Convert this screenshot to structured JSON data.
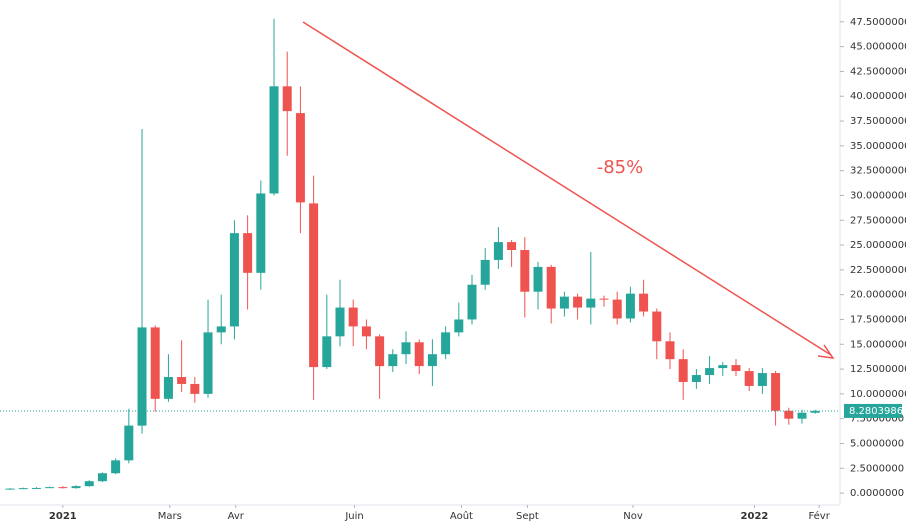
{
  "chart_data": {
    "type": "candlestick",
    "open": [
      0.4,
      0.45,
      0.5,
      0.52,
      0.6,
      0.5,
      0.7,
      1.2,
      2,
      3.3,
      6.8,
      16.7,
      9.5,
      11.7,
      11,
      10,
      16.2,
      16.8,
      26.2,
      22.2,
      30.2,
      41,
      38.3,
      29.2,
      12.7,
      15.8,
      18.7,
      16.8,
      15.8,
      12.8,
      14,
      15.2,
      12.8,
      14,
      16.2,
      17.5,
      21,
      23.5,
      25.3,
      24.5,
      20.3,
      22.8,
      18.6,
      19.8,
      18.7,
      19.6,
      19.5,
      17.6,
      20.1,
      18.3,
      15.3,
      13.5,
      11.2,
      11.9,
      12.6,
      12.9,
      12.3,
      10.8,
      12.1,
      8.3,
      7.5,
      8.1
    ],
    "high": [
      0.5,
      0.55,
      0.6,
      0.65,
      0.7,
      0.8,
      1.3,
      2.1,
      3.5,
      8.5,
      36.7,
      16.9,
      14,
      15.4,
      11.7,
      19.5,
      20,
      27.5,
      28,
      31.5,
      47.8,
      44.5,
      41,
      32,
      20,
      21.5,
      19.5,
      17.5,
      16,
      14.5,
      16.3,
      15.5,
      15.5,
      16.8,
      19.2,
      22,
      24.7,
      26.8,
      25.5,
      25.8,
      23.3,
      23,
      20.3,
      20.1,
      24.3,
      19.9,
      20.3,
      20.8,
      21.5,
      18.6,
      16.2,
      14.5,
      12.5,
      13.8,
      13.2,
      13.5,
      12.6,
      12.6,
      12.3,
      8.6,
      8.4,
      8.4
    ],
    "low": [
      0.35,
      0.4,
      0.45,
      0.5,
      0.45,
      0.45,
      0.65,
      1.1,
      1.9,
      3,
      6,
      8.2,
      9.2,
      10.2,
      9.1,
      9.6,
      15,
      15.5,
      18.5,
      20.5,
      30,
      34,
      26.2,
      9.4,
      12.5,
      14.8,
      14.8,
      14.5,
      9.5,
      12.2,
      13,
      12,
      10.8,
      13.5,
      15.8,
      17,
      20.5,
      22.6,
      22.8,
      17.7,
      18.5,
      17.1,
      17.8,
      17.5,
      17,
      18.8,
      17,
      17.2,
      17.8,
      13.5,
      12.5,
      9.4,
      10.5,
      11,
      11.8,
      11.8,
      10.3,
      10,
      6.8,
      6.9,
      7,
      8
    ],
    "close": [
      0.45,
      0.5,
      0.52,
      0.6,
      0.5,
      0.7,
      1.2,
      2,
      3.3,
      6.8,
      16.7,
      9.5,
      11.7,
      11,
      10,
      16.2,
      16.8,
      26.2,
      22.2,
      30.2,
      41,
      38.5,
      29.3,
      12.7,
      15.8,
      18.7,
      16.8,
      15.8,
      12.8,
      14,
      15.2,
      12.8,
      14,
      16.2,
      17.5,
      21,
      23.5,
      25.3,
      24.5,
      20.3,
      22.8,
      18.6,
      19.8,
      18.7,
      19.6,
      19.5,
      17.6,
      20.1,
      18.3,
      15.3,
      13.5,
      11.2,
      11.9,
      12.6,
      12.9,
      12.3,
      10.8,
      12.1,
      8.3,
      7.5,
      8.1,
      8.2803986
    ],
    "up_color": "#26a69a",
    "down_color": "#ef5350",
    "ylim": [
      -1.2,
      49.7
    ],
    "yticks": [
      {
        "value": 0,
        "label": "0.0000000"
      },
      {
        "value": 2.5,
        "label": "2.5000000"
      },
      {
        "value": 5,
        "label": "5.0000000"
      },
      {
        "value": 7.5,
        "label": "7.5000000"
      },
      {
        "value": 10,
        "label": "10.0000000"
      },
      {
        "value": 12.5,
        "label": "12.5000000"
      },
      {
        "value": 15,
        "label": "15.0000000"
      },
      {
        "value": 17.5,
        "label": "17.5000000"
      },
      {
        "value": 20,
        "label": "20.0000000"
      },
      {
        "value": 22.5,
        "label": "22.5000000"
      },
      {
        "value": 25,
        "label": "25.0000000"
      },
      {
        "value": 27.5,
        "label": "27.5000000"
      },
      {
        "value": 30,
        "label": "30.0000000"
      },
      {
        "value": 32.5,
        "label": "32.5000000"
      },
      {
        "value": 35,
        "label": "35.0000000"
      },
      {
        "value": 37.5,
        "label": "37.5000000"
      },
      {
        "value": 40,
        "label": "40.0000000"
      },
      {
        "value": 42.5,
        "label": "42.5000000"
      },
      {
        "value": 45,
        "label": "45.0000000"
      },
      {
        "value": 47.5,
        "label": "47.5000000"
      }
    ],
    "xlim": [
      -0.76,
      62.88
    ],
    "xticks": [
      {
        "value": 4,
        "label": "2021"
      },
      {
        "value": 12.1,
        "label": "Mars"
      },
      {
        "value": 17.1,
        "label": "Avr"
      },
      {
        "value": 26.1,
        "label": "Juin"
      },
      {
        "value": 34.2,
        "label": "Août"
      },
      {
        "value": 39.2,
        "label": "Sept"
      },
      {
        "value": 47.2,
        "label": "Nov"
      },
      {
        "value": 56.4,
        "label": "2022"
      },
      {
        "value": 61.3,
        "label": "Févr"
      }
    ],
    "annotation": "-85%"
  }
}
